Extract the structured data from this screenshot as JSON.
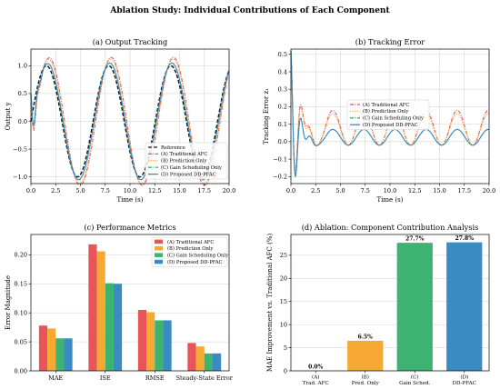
{
  "figure": {
    "suptitle": "Ablation Study: Individual Contributions of Each Component"
  },
  "colors": {
    "reference": "#1a1a1a",
    "traditional": "#e8545a",
    "prediction": "#f5a832",
    "gain": "#3cb371",
    "proposed": "#3a8bc2",
    "ablA": "#e8545a",
    "ablB": "#f5a832",
    "ablC": "#3cb371",
    "ablD": "#3a8bc2"
  },
  "chart_data": [
    {
      "id": "output_tracking",
      "type": "line",
      "title": "(a) Output Tracking",
      "xlabel": "Time (s)",
      "ylabel": "Output y",
      "xlim": [
        0,
        20
      ],
      "ylim": [
        -1.12,
        1.3
      ],
      "xticks": [
        0,
        2.5,
        5,
        7.5,
        10,
        12.5,
        15,
        17.5,
        20
      ],
      "xtick_labels": [
        "0.0",
        "2.5",
        "5.0",
        "7.5",
        "10.0",
        "12.5",
        "15.0",
        "17.5",
        "20.0"
      ],
      "yticks": [
        -1.0,
        -0.5,
        0.0,
        0.5,
        1.0
      ],
      "ytick_labels": [
        "−1.0",
        "−0.5",
        "0.0",
        "0.5",
        "1.0"
      ],
      "grid": true,
      "legend_position": "lower-right",
      "signal": {
        "period_s": 6.28,
        "reference_amplitude": 1.0
      },
      "series": [
        {
          "name": "Reference",
          "style": "dashed",
          "amplitude": 1.0,
          "phase_lag": 0.0
        },
        {
          "name": "(A) Traditional AFC",
          "style": "dashdot",
          "amplitude": 1.15,
          "phase_lag": 0.25
        },
        {
          "name": "(B) Prediction Only",
          "style": "dotted",
          "amplitude": 1.12,
          "phase_lag": 0.2
        },
        {
          "name": "(C) Gain Scheduling Only",
          "style": "dashdot",
          "amplitude": 1.05,
          "phase_lag": 0.1
        },
        {
          "name": "(D) Proposed DD-PFAC",
          "style": "solid",
          "amplitude": 1.05,
          "phase_lag": 0.1
        }
      ]
    },
    {
      "id": "tracking_error",
      "type": "line",
      "title": "(b) Tracking Error",
      "xlabel": "Time (s)",
      "ylabel": "Tracking Error z₁",
      "xlim": [
        0,
        20
      ],
      "ylim": [
        -0.24,
        0.53
      ],
      "xticks": [
        0,
        2.5,
        5,
        7.5,
        10,
        12.5,
        15,
        17.5,
        20
      ],
      "xtick_labels": [
        "0.0",
        "2.5",
        "5.0",
        "7.5",
        "10.0",
        "12.5",
        "15.0",
        "17.5",
        "20.0"
      ],
      "yticks": [
        -0.2,
        -0.1,
        0.0,
        0.1,
        0.2,
        0.3,
        0.4,
        0.5
      ],
      "ytick_labels": [
        "−0.2",
        "−0.1",
        "0.0",
        "0.1",
        "0.2",
        "0.3",
        "0.4",
        "0.5"
      ],
      "grid": true,
      "legend_position": "center-right",
      "series": [
        {
          "name": "(A) Traditional AFC",
          "style": "dashdot",
          "peak": 0.18,
          "trough": -0.02
        },
        {
          "name": "(B) Prediction Only",
          "style": "dotted",
          "peak": 0.16,
          "trough": -0.02
        },
        {
          "name": "(C) Gain Scheduling Only",
          "style": "dashdot",
          "peak": 0.07,
          "trough": -0.02
        },
        {
          "name": "(D) Proposed DD-PFAC",
          "style": "solid",
          "peak": 0.07,
          "trough": -0.02
        }
      ]
    },
    {
      "id": "performance_metrics",
      "type": "bar",
      "title": "(c) Performance Metrics",
      "ylabel": "Error Magnitude",
      "categories": [
        "MAE",
        "ISE",
        "RMSE",
        "Steady-State Error"
      ],
      "ylim": [
        0,
        0.235
      ],
      "yticks": [
        0.0,
        0.05,
        0.1,
        0.15,
        0.2
      ],
      "ytick_labels": [
        "0.00",
        "0.05",
        "0.10",
        "0.15",
        "0.20"
      ],
      "grid": true,
      "legend_position": "upper-right",
      "series": [
        {
          "name": "(A) Traditional AFC",
          "values": [
            0.078,
            0.218,
            0.105,
            0.048
          ]
        },
        {
          "name": "(B) Prediction Only",
          "values": [
            0.073,
            0.206,
            0.101,
            0.042
          ]
        },
        {
          "name": "(C) Gain Scheduling Only",
          "values": [
            0.056,
            0.151,
            0.087,
            0.03
          ]
        },
        {
          "name": "(D) Proposed DD-PFAC",
          "values": [
            0.056,
            0.15,
            0.087,
            0.03
          ]
        }
      ]
    },
    {
      "id": "ablation_contribution",
      "type": "bar",
      "title": "(d) Ablation: Component Contribution Analysis",
      "ylabel": "MAE Improvement vs. Traditional AFC (%)",
      "categories": [
        {
          "line1": "(A)",
          "line2": "Trad. AFC"
        },
        {
          "line1": "(B)",
          "line2": "Pred. Only"
        },
        {
          "line1": "(C)",
          "line2": "Gain Sched."
        },
        {
          "line1": "(D)",
          "line2": "DD-PFAC"
        }
      ],
      "values": [
        0.0,
        6.5,
        27.7,
        27.8
      ],
      "value_labels": [
        "0.0%",
        "6.5%",
        "27.7%",
        "27.8%"
      ],
      "ylim": [
        0,
        29.5
      ],
      "yticks": [
        0,
        5,
        10,
        15,
        20,
        25
      ],
      "ytick_labels": [
        "0",
        "5",
        "10",
        "15",
        "20",
        "25"
      ],
      "grid": true
    }
  ]
}
